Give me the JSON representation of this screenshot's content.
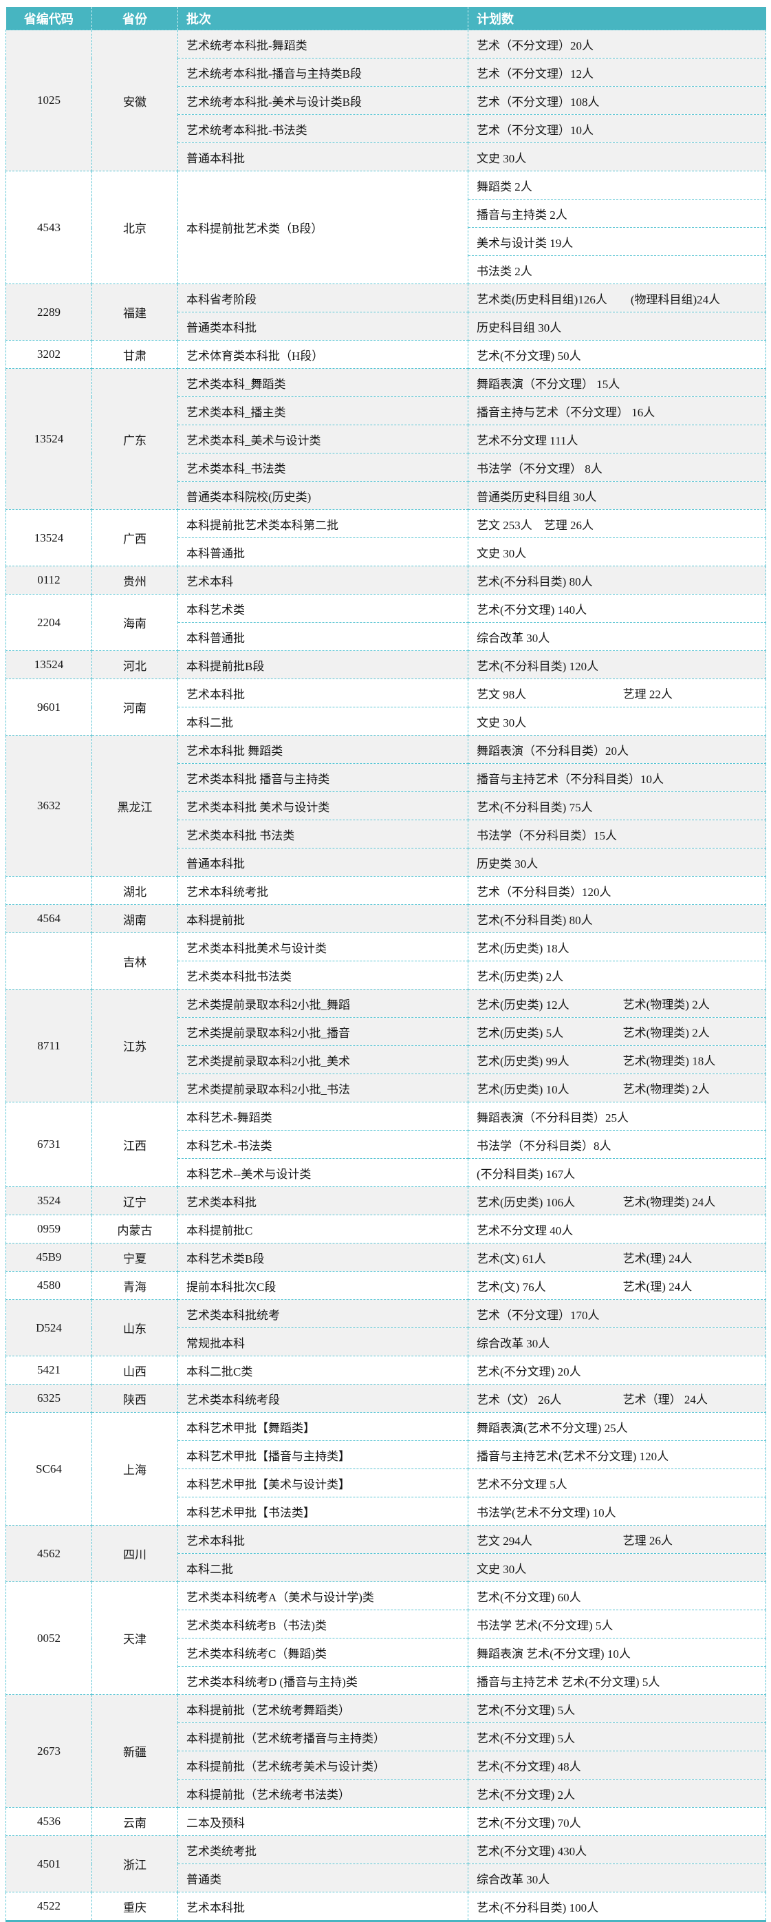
{
  "table": {
    "columns": [
      "省编代码",
      "省份",
      "批次",
      "计划数"
    ],
    "colors": {
      "header_bg": "#47b5c1",
      "border_dashed": "#58c4d3",
      "row_alt_bg": "#f1f1f1",
      "header_text": "#ffffff"
    },
    "groups": [
      {
        "code": "1025",
        "province": "安徽",
        "rows": [
          {
            "batch": "艺术统考本科批-舞蹈类",
            "plan": "艺术（不分文理）20人"
          },
          {
            "batch": "艺术统考本科批-播音与主持类B段",
            "plan": "艺术（不分文理）12人"
          },
          {
            "batch": "艺术统考本科批-美术与设计类B段",
            "plan": "艺术（不分文理）108人"
          },
          {
            "batch": "艺术统考本科批-书法类",
            "plan": "艺术（不分文理）10人"
          },
          {
            "batch": "普通本科批",
            "plan": "文史 30人"
          }
        ]
      },
      {
        "code": "4543",
        "province": "北京",
        "merged_batch": "本科提前批艺术类（B段）",
        "rows": [
          {
            "plan": "舞蹈类 2人"
          },
          {
            "plan": "播音与主持类 2人"
          },
          {
            "plan": "美术与设计类 19人"
          },
          {
            "plan": "书法类 2人"
          }
        ]
      },
      {
        "code": "2289",
        "province": "福建",
        "rows": [
          {
            "batch": "本科省考阶段",
            "plan": "艺术类(历史科目组)126人　　(物理科目组)24人"
          },
          {
            "batch": "普通类本科批",
            "plan": "历史科目组 30人"
          }
        ]
      },
      {
        "code": "3202",
        "province": "甘肃",
        "rows": [
          {
            "batch": "艺术体育类本科批（H段）",
            "plan": "艺术(不分文理) 50人"
          }
        ]
      },
      {
        "code": "13524",
        "province": "广东",
        "rows": [
          {
            "batch": "艺术类本科_舞蹈类",
            "plan": "舞蹈表演（不分文理） 15人"
          },
          {
            "batch": "艺术类本科_播主类",
            "plan": "播音主持与艺术（不分文理） 16人"
          },
          {
            "batch": "艺术类本科_美术与设计类",
            "plan": "艺术不分文理 111人"
          },
          {
            "batch": "艺术类本科_书法类",
            "plan": "书法学（不分文理） 8人"
          },
          {
            "batch": "普通类本科院校(历史类)",
            "plan": "普通类历史科目组 30人"
          }
        ]
      },
      {
        "code": "13524",
        "province": "广西",
        "rows": [
          {
            "batch": "本科提前批艺术类本科第二批",
            "plan": "艺文 253人　艺理 26人"
          },
          {
            "batch": "本科普通批",
            "plan": "文史 30人"
          }
        ]
      },
      {
        "code": "0112",
        "province": "贵州",
        "rows": [
          {
            "batch": "艺术本科",
            "plan": "艺术(不分科目类) 80人"
          }
        ]
      },
      {
        "code": "2204",
        "province": "海南",
        "rows": [
          {
            "batch": "本科艺术类",
            "plan": "艺术(不分文理) 140人"
          },
          {
            "batch": "本科普通批",
            "plan": "综合改革 30人"
          }
        ]
      },
      {
        "code": "13524",
        "province": "河北",
        "rows": [
          {
            "batch": "本科提前批B段",
            "plan": "艺术(不分科目类) 120人"
          }
        ]
      },
      {
        "code": "9601",
        "province": "河南",
        "rows": [
          {
            "batch": "艺术本科批",
            "plan": [
              "艺文 98人",
              "艺理 22人"
            ]
          },
          {
            "batch": "本科二批",
            "plan": "文史  30人"
          }
        ]
      },
      {
        "code": "3632",
        "province": "黑龙江",
        "rows": [
          {
            "batch": "艺术本科批 舞蹈类",
            "plan": "舞蹈表演（不分科目类）20人"
          },
          {
            "batch": "艺术类本科批 播音与主持类",
            "plan": "播音与主持艺术（不分科目类）10人"
          },
          {
            "batch": "艺术类本科批 美术与设计类",
            "plan": "艺术(不分科目类) 75人"
          },
          {
            "batch": "艺术类本科批 书法类",
            "plan": "书法学（不分科目类）15人"
          },
          {
            "batch": "普通本科批",
            "plan": "历史类 30人"
          }
        ]
      },
      {
        "code": "",
        "province": "湖北",
        "rows": [
          {
            "batch": "艺术本科统考批",
            "plan": "艺术（不分科目类）120人"
          }
        ]
      },
      {
        "code": "4564",
        "province": "湖南",
        "rows": [
          {
            "batch": "本科提前批",
            "plan": "艺术(不分科目类) 80人"
          }
        ]
      },
      {
        "code": "",
        "province": "吉林",
        "rows": [
          {
            "batch": "艺术类本科批美术与设计类",
            "plan": "艺术(历史类) 18人"
          },
          {
            "batch": "艺术类本科批书法类",
            "plan": "艺术(历史类)  2人"
          }
        ]
      },
      {
        "code": "8711",
        "province": "江苏",
        "rows": [
          {
            "batch": "艺术类提前录取本科2小批_舞蹈",
            "plan": [
              "艺术(历史类) 12人",
              "艺术(物理类)  2人"
            ]
          },
          {
            "batch": "艺术类提前录取本科2小批_播音",
            "plan": [
              "艺术(历史类)  5人",
              "艺术(物理类)  2人"
            ]
          },
          {
            "batch": "艺术类提前录取本科2小批_美术",
            "plan": [
              "艺术(历史类) 99人",
              "艺术(物理类) 18人"
            ]
          },
          {
            "batch": "艺术类提前录取本科2小批_书法",
            "plan": [
              "艺术(历史类) 10人",
              "艺术(物理类)  2人"
            ]
          }
        ]
      },
      {
        "code": "6731",
        "province": "江西",
        "rows": [
          {
            "batch": "本科艺术-舞蹈类",
            "plan": "舞蹈表演（不分科目类）25人"
          },
          {
            "batch": "本科艺术-书法类",
            "plan": "书法学（不分科目类）8人"
          },
          {
            "batch": "本科艺术--美术与设计类",
            "plan": "(不分科目类) 167人"
          }
        ]
      },
      {
        "code": "3524",
        "province": "辽宁",
        "rows": [
          {
            "batch": "艺术类本科批",
            "plan": [
              "艺术(历史类) 106人",
              "艺术(物理类) 24人"
            ]
          }
        ]
      },
      {
        "code": "0959",
        "province": "内蒙古",
        "rows": [
          {
            "batch": "本科提前批C",
            "plan": "艺术不分文理 40人"
          }
        ]
      },
      {
        "code": "45B9",
        "province": "宁夏",
        "rows": [
          {
            "batch": "本科艺术类B段",
            "plan": [
              "艺术(文)  61人",
              "艺术(理)  24人"
            ]
          }
        ]
      },
      {
        "code": "4580",
        "province": "青海",
        "rows": [
          {
            "batch": "提前本科批次C段",
            "plan": [
              "艺术(文) 76人",
              "艺术(理) 24人"
            ]
          }
        ]
      },
      {
        "code": "D524",
        "province": "山东",
        "rows": [
          {
            "batch": "艺术类本科批统考",
            "plan": "艺术（不分文理）170人"
          },
          {
            "batch": "常规批本科",
            "plan": "综合改革 30人"
          }
        ]
      },
      {
        "code": "5421",
        "province": "山西",
        "rows": [
          {
            "batch": "本科二批C类",
            "plan": "艺术(不分文理) 20人"
          }
        ]
      },
      {
        "code": "6325",
        "province": "陕西",
        "rows": [
          {
            "batch": "艺术类本科统考段",
            "plan": [
              "艺术（文） 26人",
              "艺术（理） 24人"
            ]
          }
        ]
      },
      {
        "code": "SC64",
        "province": "上海",
        "rows": [
          {
            "batch": "本科艺术甲批【舞蹈类】",
            "plan": "舞蹈表演(艺术不分文理)  25人"
          },
          {
            "batch": "本科艺术甲批【播音与主持类】",
            "plan": "播音与主持艺术(艺术不分文理) 120人"
          },
          {
            "batch": "本科艺术甲批【美术与设计类】",
            "plan": "艺术不分文理  5人"
          },
          {
            "batch": "本科艺术甲批【书法类】",
            "plan": "书法学(艺术不分文理) 10人"
          }
        ]
      },
      {
        "code": "4562",
        "province": "四川",
        "rows": [
          {
            "batch": "艺术本科批",
            "plan": [
              "艺文 294人",
              "艺理 26人"
            ]
          },
          {
            "batch": "本科二批",
            "plan": "文史 30人"
          }
        ]
      },
      {
        "code": "0052",
        "province": "天津",
        "rows": [
          {
            "batch": "艺术类本科统考A（美术与设计学)类",
            "plan": "艺术(不分文理) 60人"
          },
          {
            "batch": "艺术类本科统考B（书法)类",
            "plan": "书法学 艺术(不分文理) 5人"
          },
          {
            "batch": "艺术类本科统考C（舞蹈)类",
            "plan": "舞蹈表演 艺术(不分文理) 10人"
          },
          {
            "batch": "艺术类本科统考D (播音与主持)类",
            "plan": "播音与主持艺术 艺术(不分文理)  5人"
          }
        ]
      },
      {
        "code": "2673",
        "province": "新疆",
        "rows": [
          {
            "batch": "本科提前批（艺术统考舞蹈类）",
            "plan": "艺术(不分文理) 5人"
          },
          {
            "batch": "本科提前批（艺术统考播音与主持类）",
            "plan": "艺术(不分文理) 5人"
          },
          {
            "batch": "本科提前批（艺术统考美术与设计类）",
            "plan": "艺术(不分文理) 48人"
          },
          {
            "batch": "本科提前批（艺术统考书法类）",
            "plan": "艺术(不分文理) 2人"
          }
        ]
      },
      {
        "code": "4536",
        "province": "云南",
        "rows": [
          {
            "batch": "二本及预科",
            "plan": "艺术(不分文理) 70人"
          }
        ]
      },
      {
        "code": "4501",
        "province": "浙江",
        "rows": [
          {
            "batch": "艺术类统考批",
            "plan": "艺术(不分文理) 430人"
          },
          {
            "batch": "普通类",
            "plan": "综合改革 30人"
          }
        ]
      },
      {
        "code": "4522",
        "province": "重庆",
        "rows": [
          {
            "batch": "艺术本科批",
            "plan": "艺术(不分科目类) 100人"
          }
        ]
      }
    ]
  }
}
